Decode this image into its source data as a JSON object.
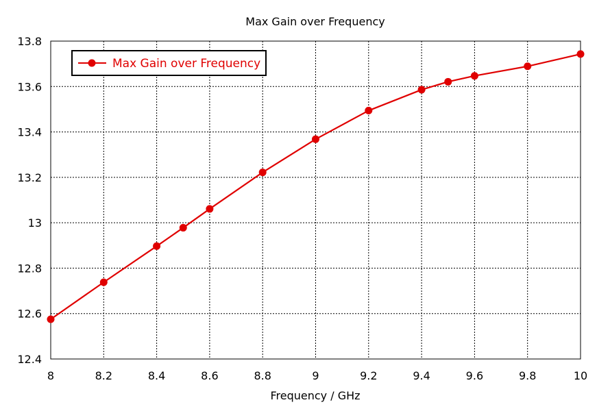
{
  "chart_data": {
    "type": "line",
    "title": "Max Gain over Frequency",
    "xlabel": "Frequency / GHz",
    "ylabel": "",
    "xlim": [
      8,
      10
    ],
    "ylim": [
      12.4,
      13.8
    ],
    "x_ticks": [
      "8",
      "8.2",
      "8.4",
      "8.6",
      "8.8",
      "9",
      "9.2",
      "9.4",
      "9.6",
      "9.8",
      "10"
    ],
    "y_ticks": [
      "12.4",
      "12.6",
      "12.8",
      "13",
      "13.2",
      "13.4",
      "13.6",
      "13.8"
    ],
    "grid": true,
    "legend_position": "top-left",
    "series": [
      {
        "name": "Max Gain over Frequency",
        "color": "#e00000",
        "marker": "circle",
        "x": [
          8.0,
          8.2,
          8.4,
          8.5,
          8.6,
          8.8,
          9.0,
          9.2,
          9.4,
          9.5,
          9.6,
          9.8,
          10.0
        ],
        "y": [
          12.575,
          12.738,
          12.897,
          12.978,
          13.061,
          13.222,
          13.368,
          13.494,
          13.586,
          13.621,
          13.647,
          13.689,
          13.743
        ]
      }
    ]
  }
}
